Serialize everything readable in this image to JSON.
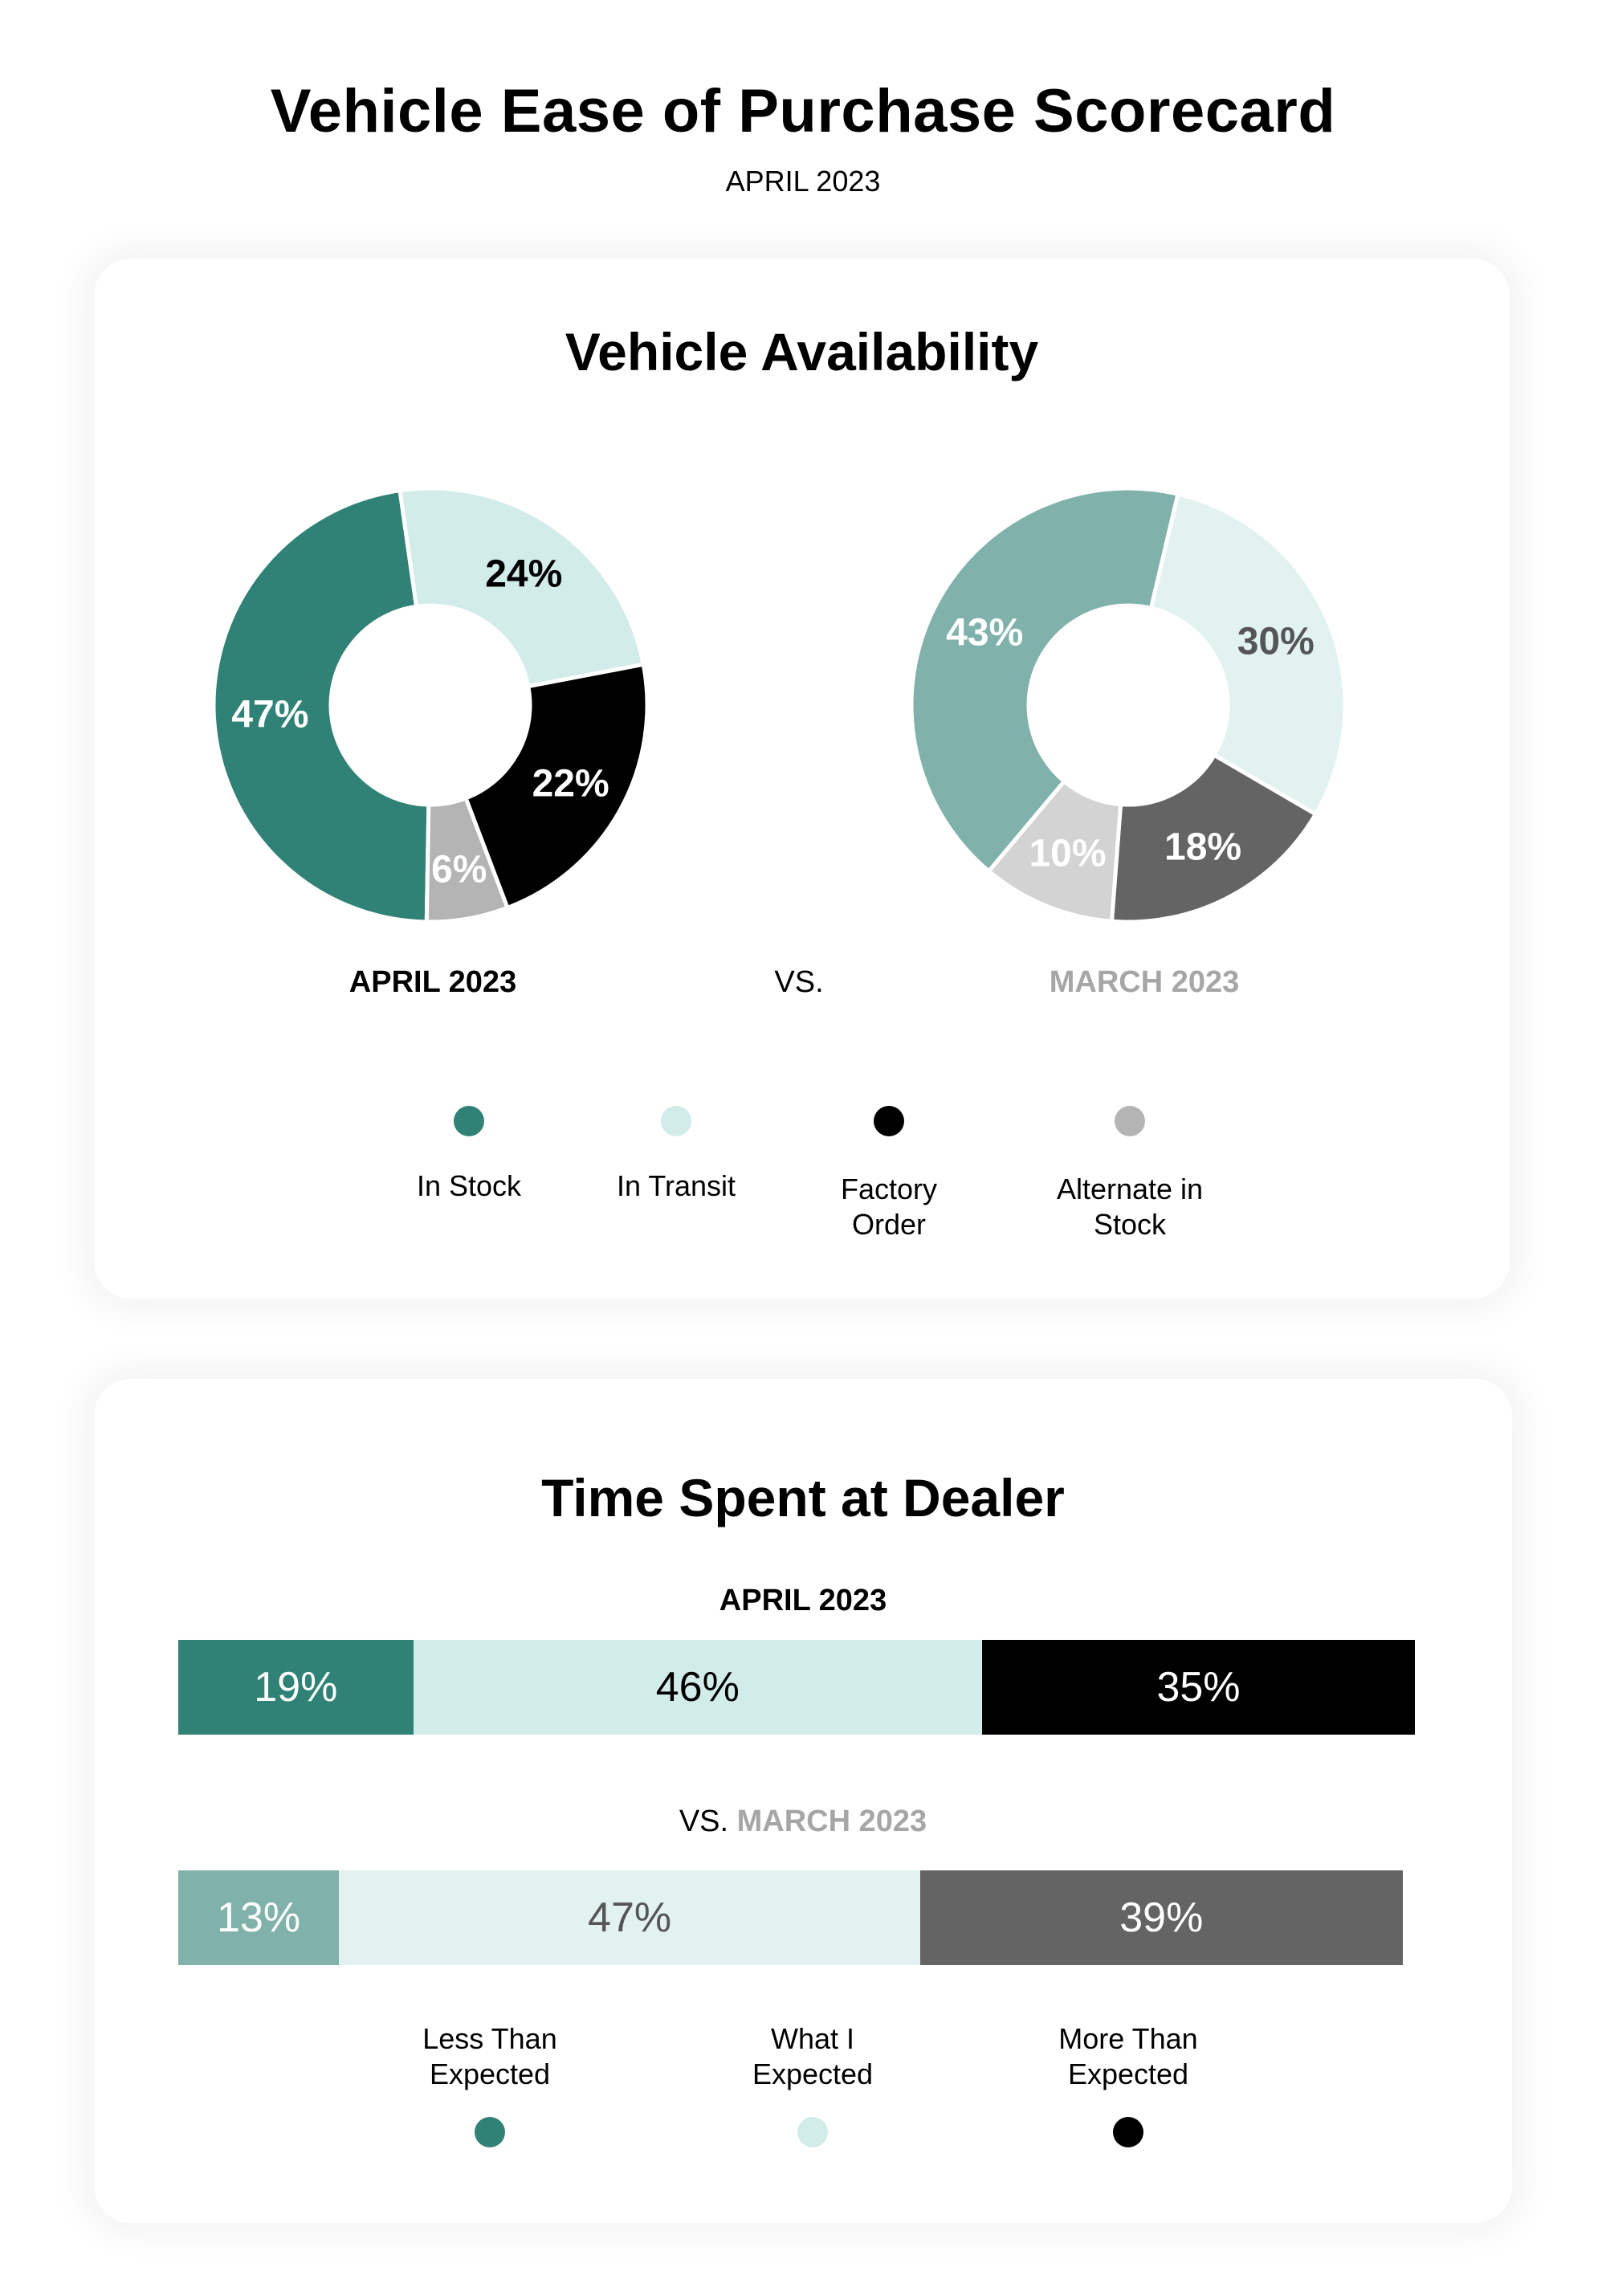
{
  "header": {
    "title": "Vehicle Ease of Purchase Scorecard",
    "subtitle": "APRIL 2023"
  },
  "availability": {
    "title": "Vehicle Availability",
    "current_label": "APRIL 2023",
    "vs_label": "VS.",
    "previous_label": "MARCH 2023",
    "legend": [
      {
        "label": "In Stock",
        "color": "#318276"
      },
      {
        "label": "In Transit",
        "color": "#d2ecea"
      },
      {
        "label": "Factory\nOrder",
        "color": "#000000"
      },
      {
        "label": "Alternate in\nStock",
        "color": "#b4b4b4"
      }
    ],
    "april": [
      {
        "label": "47%",
        "value": 47
      },
      {
        "label": "24%",
        "value": 24
      },
      {
        "label": "22%",
        "value": 22
      },
      {
        "label": "6%",
        "value": 6
      }
    ],
    "march": [
      {
        "label": "43%",
        "value": 43
      },
      {
        "label": "30%",
        "value": 30
      },
      {
        "label": "18%",
        "value": 18
      },
      {
        "label": "10%",
        "value": 10
      }
    ]
  },
  "time": {
    "title": "Time Spent at Dealer",
    "current_label": "APRIL 2023",
    "vs_prefix": "VS.",
    "previous_label": "MARCH 2023",
    "legend": [
      {
        "label": "Less Than\nExpected",
        "color": "#318276"
      },
      {
        "label": "What I\nExpected",
        "color": "#d2ecea"
      },
      {
        "label": "More Than\nExpected",
        "color": "#000000"
      }
    ],
    "april": [
      {
        "label": "19%",
        "value": 19
      },
      {
        "label": "46%",
        "value": 46
      },
      {
        "label": "35%",
        "value": 35
      }
    ],
    "march": [
      {
        "label": "13%",
        "value": 13
      },
      {
        "label": "47%",
        "value": 47
      },
      {
        "label": "39%",
        "value": 39
      }
    ]
  },
  "chart_data": [
    {
      "type": "pie",
      "title": "Vehicle Availability — APRIL 2023",
      "categories": [
        "In Stock",
        "In Transit",
        "Factory Order",
        "Alternate in Stock"
      ],
      "values": [
        47,
        24,
        22,
        6
      ],
      "colors": [
        "#318276",
        "#d2ecea",
        "#000000",
        "#b4b4b4"
      ],
      "donut": true
    },
    {
      "type": "pie",
      "title": "Vehicle Availability — MARCH 2023",
      "categories": [
        "In Stock",
        "In Transit",
        "Factory Order",
        "Alternate in Stock"
      ],
      "values": [
        43,
        30,
        18,
        10
      ],
      "colors": [
        "#80b2ab",
        "#e2f2f0",
        "#646464",
        "#d2d3d2"
      ],
      "donut": true
    },
    {
      "type": "bar",
      "orientation": "horizontal-stacked",
      "title": "Time Spent at Dealer",
      "categories": [
        "APRIL 2023",
        "MARCH 2023"
      ],
      "series": [
        {
          "name": "Less Than Expected",
          "values": [
            19,
            13
          ]
        },
        {
          "name": "What I Expected",
          "values": [
            46,
            47
          ]
        },
        {
          "name": "More Than Expected",
          "values": [
            35,
            39
          ]
        }
      ],
      "unit": "%"
    }
  ]
}
